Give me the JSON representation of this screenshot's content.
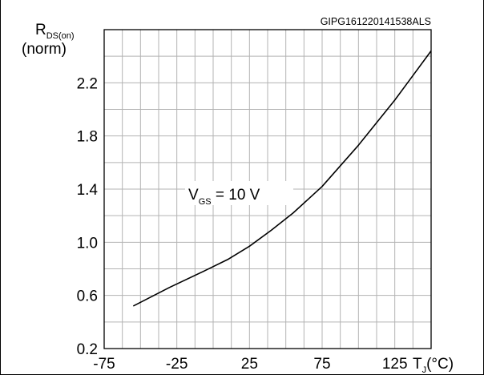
{
  "chart_data": {
    "type": "line",
    "identifier": "GIPG161220141538ALS",
    "ylabel": {
      "main": "R",
      "sub": "DS(on)",
      "unit": "(norm)"
    },
    "xlabel": {
      "main": "T",
      "sub": "J",
      "unit": "(°C)"
    },
    "annotation": {
      "main": "V",
      "sub": "GS",
      "rest": " = 10 V"
    },
    "xlim": [
      -75,
      150
    ],
    "ylim": [
      0.2,
      2.6
    ],
    "xticks": [
      -75,
      -25,
      25,
      75,
      125
    ],
    "xtick_labels": [
      "-75",
      "-25",
      "25",
      "75",
      "125"
    ],
    "yticks": [
      0.2,
      0.6,
      1.0,
      1.4,
      1.8,
      2.2
    ],
    "ytick_labels": [
      "0.2",
      "0.6",
      "1.0",
      "1.4",
      "1.8",
      "2.2"
    ],
    "grid": true,
    "series": [
      {
        "x": [
          -55,
          -30,
          -5,
          10,
          25,
          40,
          55,
          75,
          100,
          125,
          150
        ],
        "y": [
          0.52,
          0.66,
          0.79,
          0.87,
          0.97,
          1.09,
          1.22,
          1.42,
          1.73,
          2.07,
          2.44
        ]
      }
    ]
  }
}
